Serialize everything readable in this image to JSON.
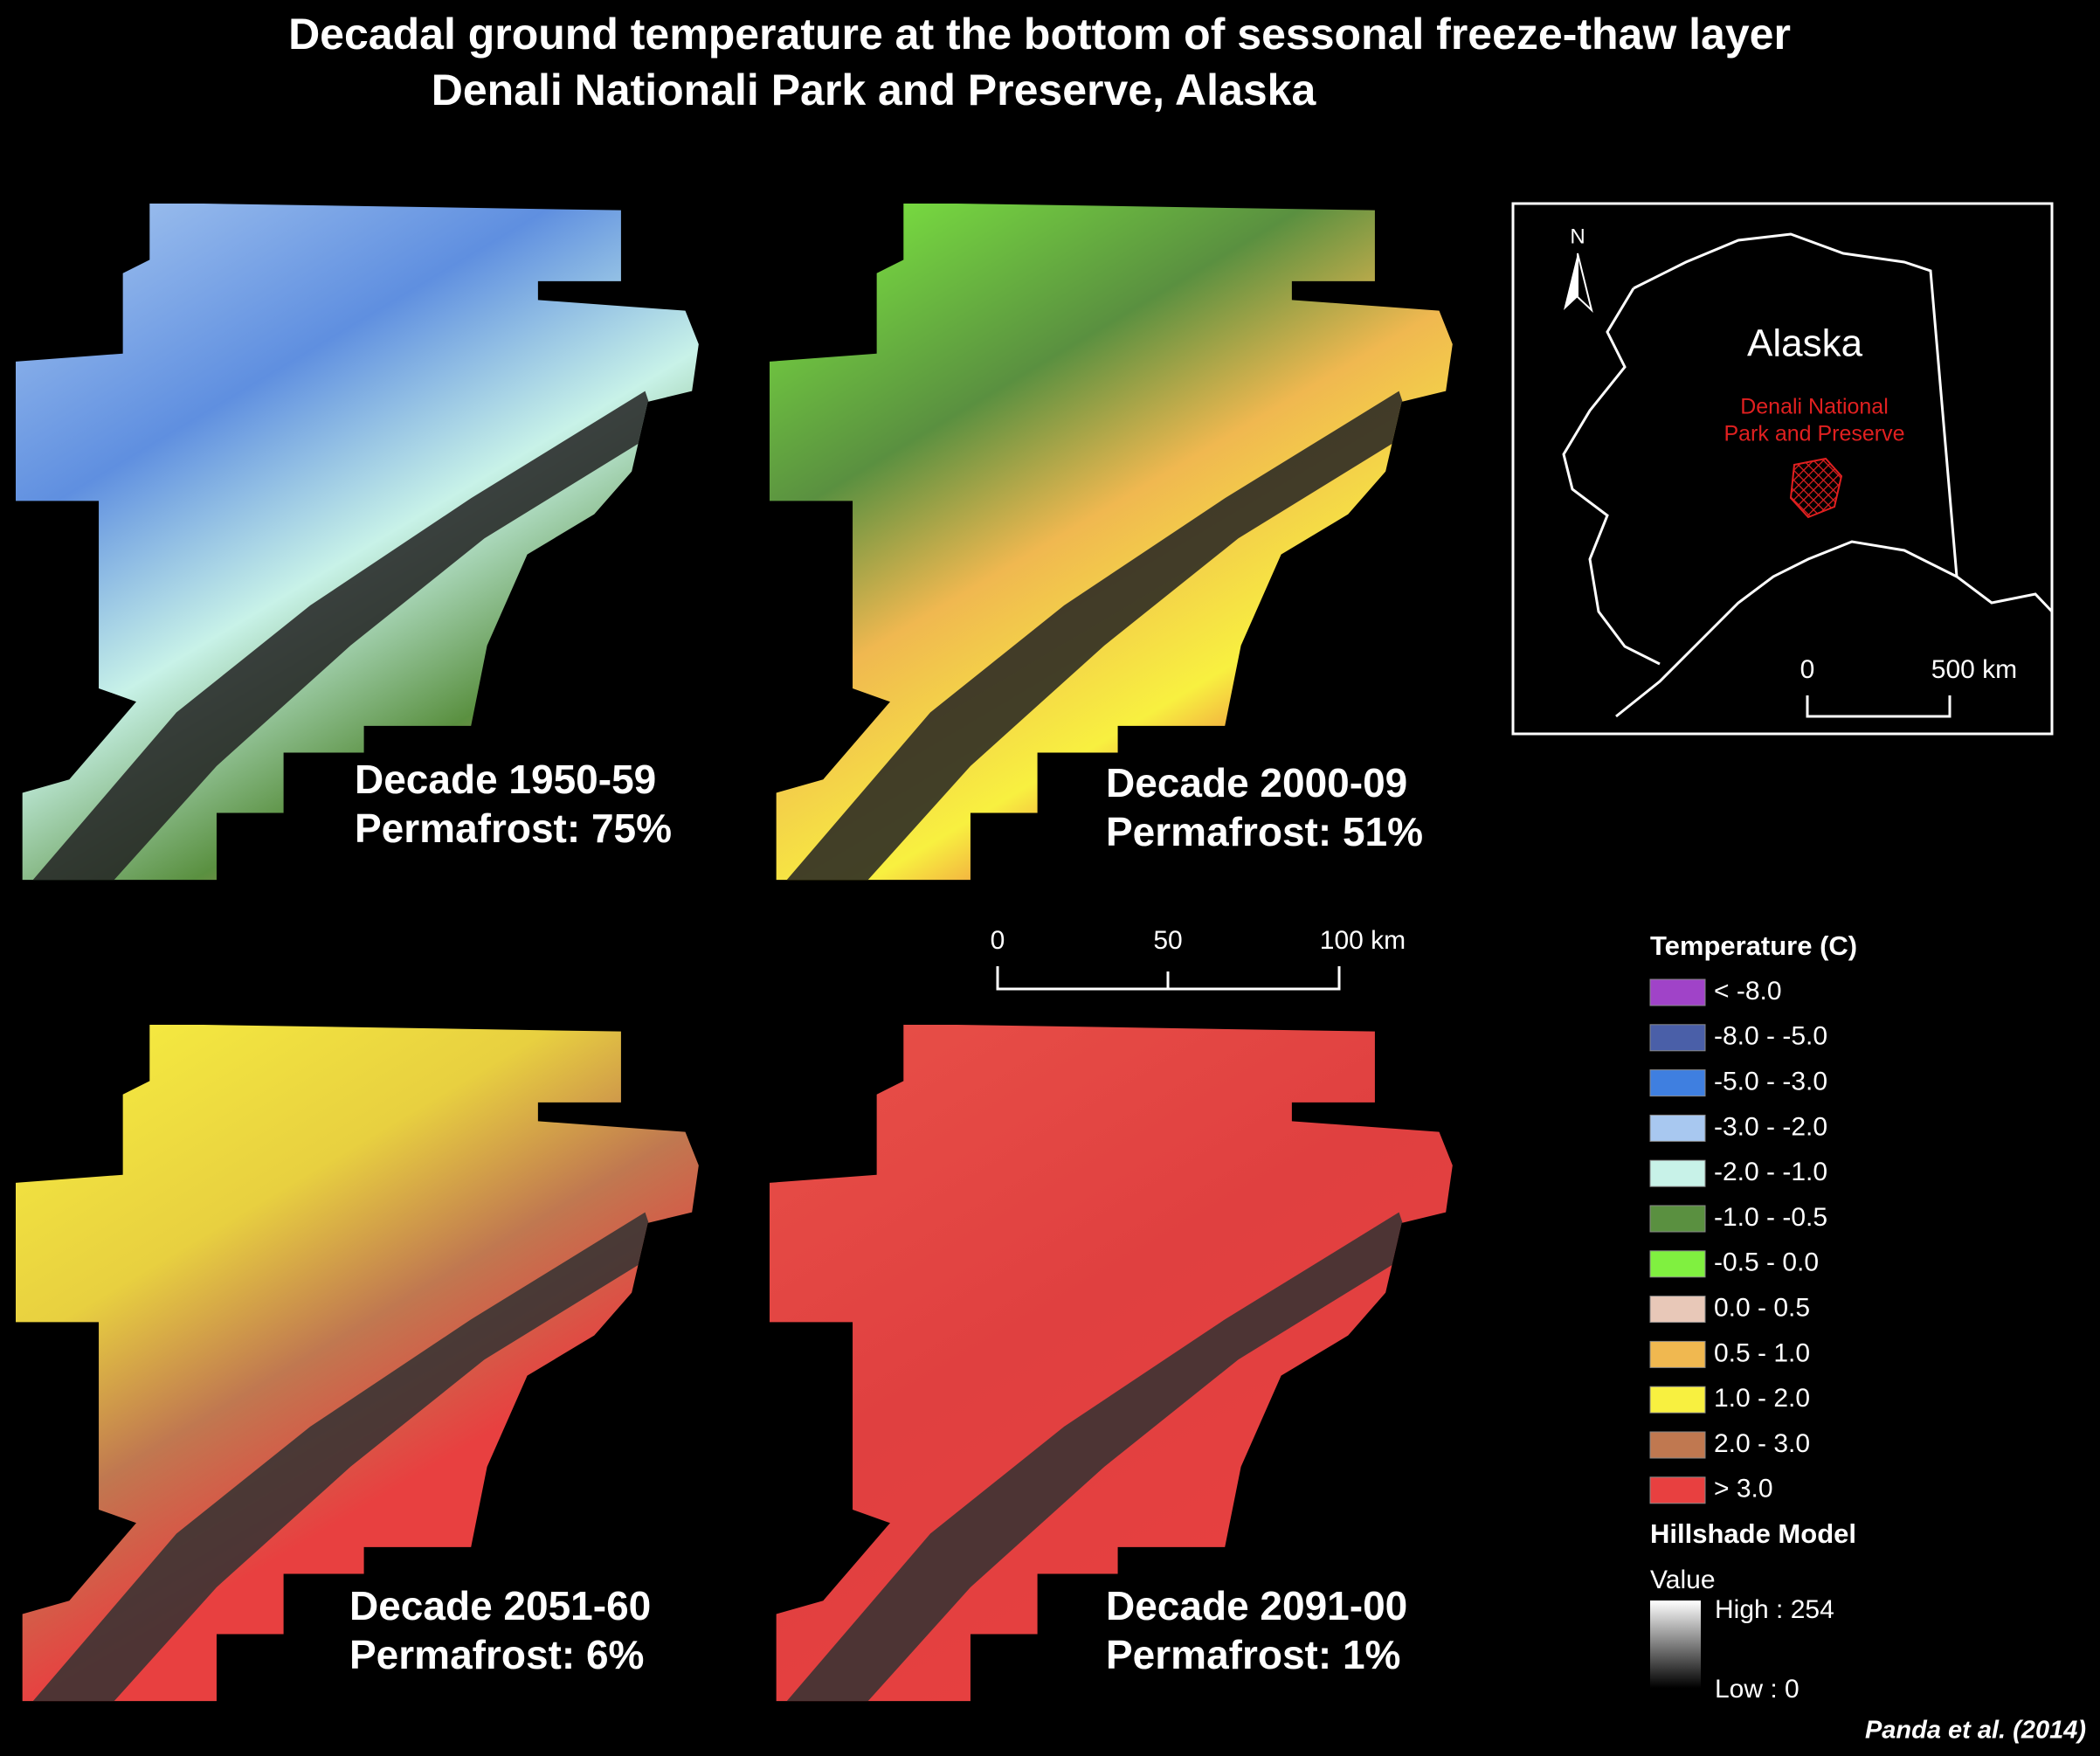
{
  "title": [
    "Decadal ground temperature at the bottom of sessonal freeze-thaw layer",
    "Denali Nationali Park and Preserve, Alaska"
  ],
  "panels": [
    {
      "decade": "Decade 1950-59",
      "permafrost": "Permafrost: 75%"
    },
    {
      "decade": "Decade 2000-09",
      "permafrost": "Permafrost: 51%"
    },
    {
      "decade": "Decade 2051-60",
      "permafrost": "Permafrost: 6%"
    },
    {
      "decade": "Decade 2091-00",
      "permafrost": "Permafrost: 1%"
    }
  ],
  "inset": {
    "north": "N",
    "region": "Alaska",
    "park": [
      "Denali National",
      "Park and Preserve"
    ],
    "scale": [
      "0",
      "500 km"
    ]
  },
  "scale_bar": [
    "0",
    "50",
    "100 km"
  ],
  "legend": {
    "title": "Temperature (C)",
    "items": [
      {
        "label": "< -8.0",
        "color": "#a043c8"
      },
      {
        "label": "-8.0 - -5.0",
        "color": "#4a5fa8"
      },
      {
        "label": "-5.0 - -3.0",
        "color": "#3f7fe0"
      },
      {
        "label": "-3.0 - -2.0",
        "color": "#a8c8f0"
      },
      {
        "label": "-2.0 - -1.0",
        "color": "#c8f2e8"
      },
      {
        "label": "-1.0 - -0.5",
        "color": "#5a9040"
      },
      {
        "label": "-0.5 - 0.0",
        "color": "#80f040"
      },
      {
        "label": "0.0 - 0.5",
        "color": "#e8c8b8"
      },
      {
        "label": "0.5 - 1.0",
        "color": "#f0b850"
      },
      {
        "label": "1.0 - 2.0",
        "color": "#f8f040"
      },
      {
        "label": "2.0 - 3.0",
        "color": "#c07850"
      },
      {
        "label": "> 3.0",
        "color": "#e84040"
      }
    ],
    "hillshade": {
      "title": "Hillshade Model",
      "value": "Value",
      "high": "High : 254",
      "low": "Low : 0"
    }
  },
  "citation": "Panda et al. (2014)"
}
